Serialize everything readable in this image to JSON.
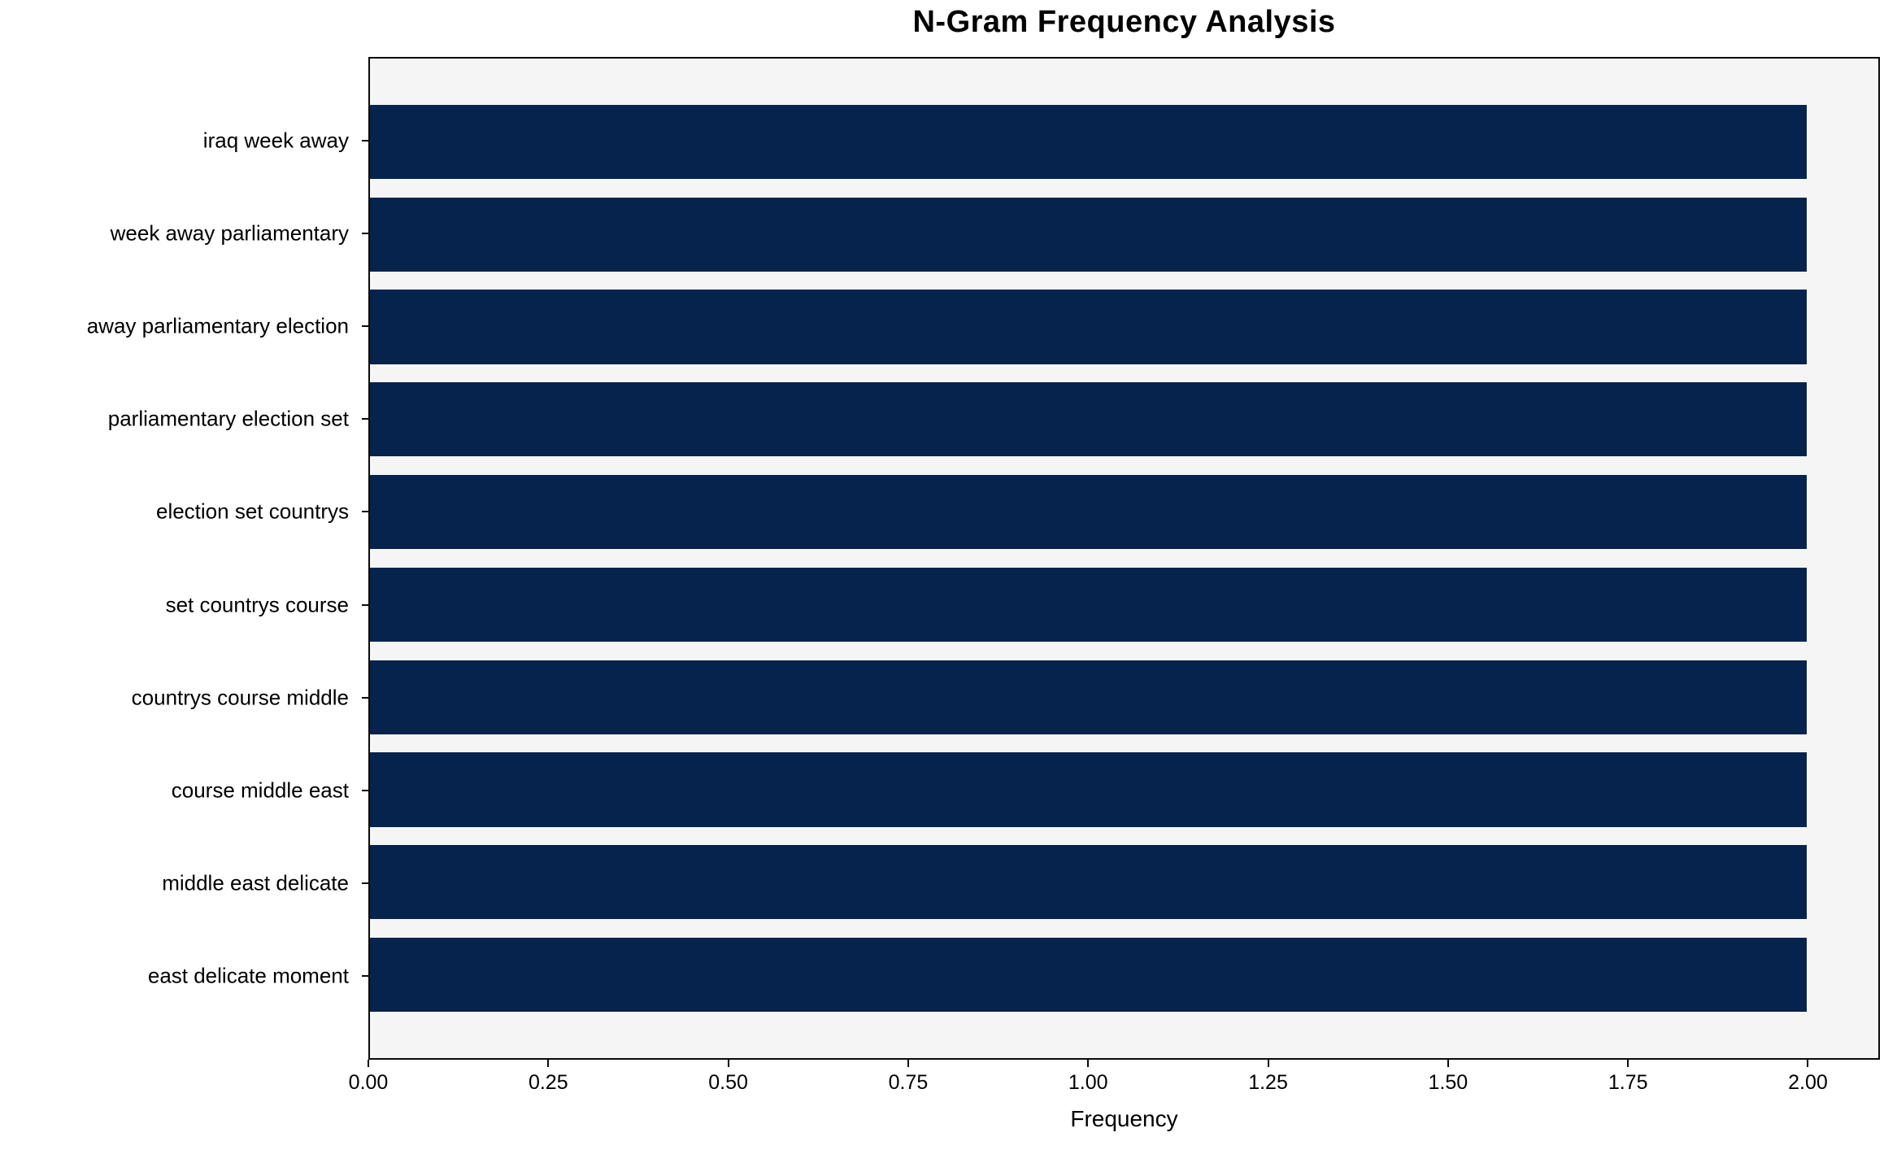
{
  "chart_data": {
    "type": "bar",
    "orientation": "horizontal",
    "title": "N-Gram Frequency Analysis",
    "xlabel": "Frequency",
    "ylabel": "",
    "categories": [
      "iraq week away",
      "week away parliamentary",
      "away parliamentary election",
      "parliamentary election set",
      "election set countrys",
      "set countrys course",
      "countrys course middle",
      "course middle east",
      "middle east delicate",
      "east delicate moment"
    ],
    "values": [
      2,
      2,
      2,
      2,
      2,
      2,
      2,
      2,
      2,
      2
    ],
    "xlim": [
      0,
      2.1
    ],
    "xtick_labels": [
      "0.00",
      "0.25",
      "0.50",
      "0.75",
      "1.00",
      "1.25",
      "1.50",
      "1.75",
      "2.00"
    ],
    "xtick_values": [
      0,
      0.25,
      0.5,
      0.75,
      1.0,
      1.25,
      1.5,
      1.75,
      2.0
    ],
    "bar_height_frac": 0.8,
    "y_margin": 0.4,
    "grid": false,
    "legend_position": "none",
    "colors": {
      "bar": "#05234c",
      "plot_bg": "#f5f5f6",
      "spine": "#0a0a0a",
      "text": "#000000",
      "figure_bg": "#ffffff"
    }
  }
}
